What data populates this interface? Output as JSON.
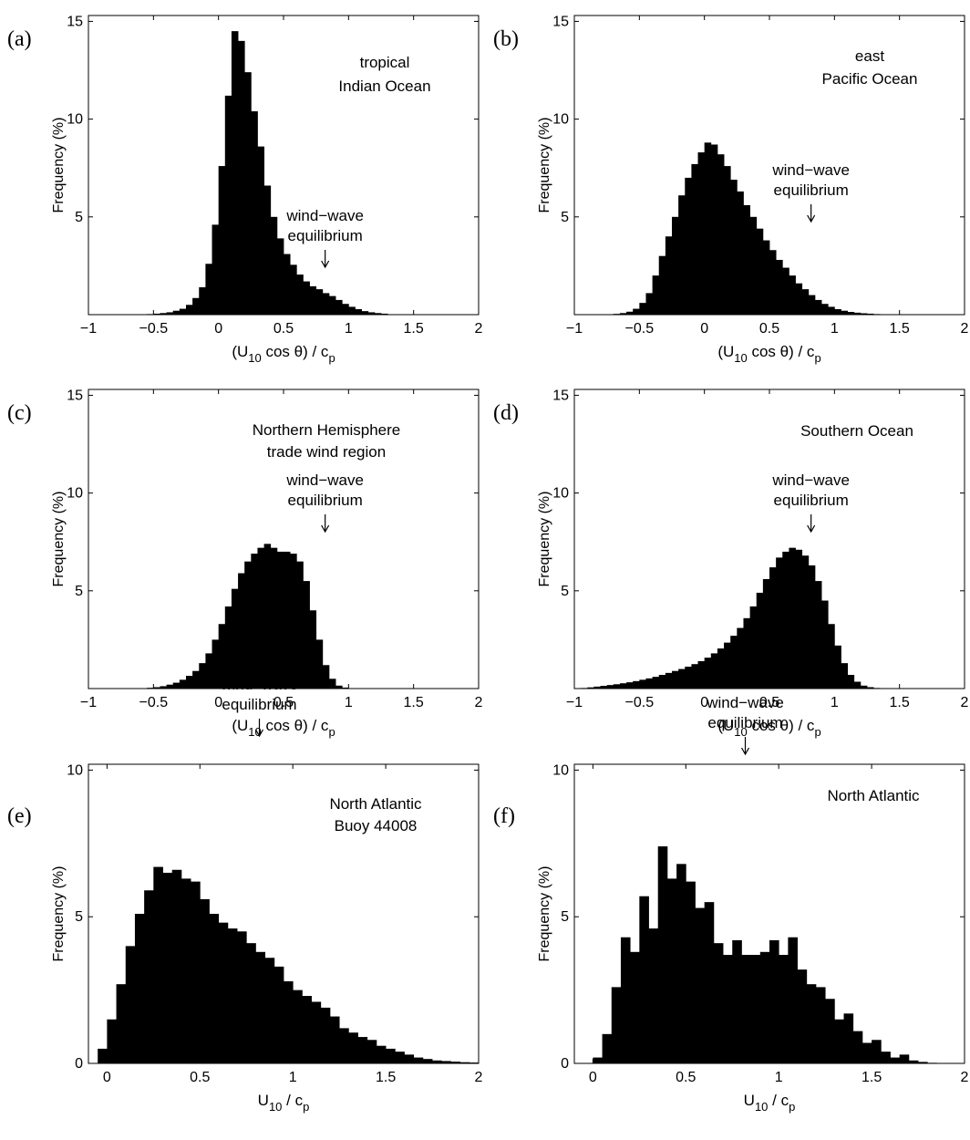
{
  "figure": {
    "y_label": "Frequency (%)"
  },
  "chart_data": [
    {
      "panel": "(a)",
      "type": "bar",
      "annotation": [
        "tropical",
        "Indian Ocean"
      ],
      "marker_label": [
        "wind−wave",
        "equilibrium"
      ],
      "marker_x": 0.82,
      "xlabel": "(U10 cos θ) / cp",
      "xlabel_parts": {
        "pre": "(U",
        "sub1": "10",
        "mid": " cos θ) / c",
        "sub2": "p"
      },
      "xlim": [
        -1,
        2
      ],
      "ylim": [
        0,
        15.3
      ],
      "xticks": [
        -1,
        -0.5,
        0,
        0.5,
        1,
        1.5,
        2
      ],
      "xtick_labels": [
        "−1",
        "−0.5",
        "0",
        "0.5",
        "1",
        "1.5",
        "2"
      ],
      "yticks": [
        5,
        10,
        15
      ],
      "ytick_labels": [
        "5",
        "10",
        "15"
      ],
      "bin_width": 0.05,
      "bin_start": -0.6,
      "values": [
        0.02,
        0.03,
        0.05,
        0.08,
        0.12,
        0.2,
        0.3,
        0.5,
        0.85,
        1.4,
        2.6,
        4.6,
        7.6,
        11.2,
        14.5,
        14.0,
        12.4,
        10.4,
        8.6,
        6.6,
        5.0,
        3.9,
        3.1,
        2.55,
        2.05,
        1.7,
        1.45,
        1.3,
        1.1,
        0.95,
        0.75,
        0.55,
        0.4,
        0.28,
        0.18,
        0.12,
        0.08,
        0.05
      ]
    },
    {
      "panel": "(b)",
      "type": "bar",
      "annotation": [
        "east",
        "Pacific Ocean"
      ],
      "marker_label": [
        "wind−wave",
        "equilibrium"
      ],
      "marker_x": 0.82,
      "xlabel": "(U10 cos θ) / cp",
      "xlabel_parts": {
        "pre": "(U",
        "sub1": "10",
        "mid": " cos θ) / c",
        "sub2": "p"
      },
      "xlim": [
        -1,
        2
      ],
      "ylim": [
        0,
        15.3
      ],
      "xticks": [
        -1,
        -0.5,
        0,
        0.5,
        1,
        1.5,
        2
      ],
      "xtick_labels": [
        "−1",
        "−0.5",
        "0",
        "0.5",
        "1",
        "1.5",
        "2"
      ],
      "yticks": [
        5,
        10,
        15
      ],
      "ytick_labels": [
        "5",
        "10",
        "15"
      ],
      "bin_width": 0.05,
      "bin_start": -0.75,
      "values": [
        0.02,
        0.04,
        0.08,
        0.15,
        0.3,
        0.6,
        1.1,
        2.0,
        3.0,
        4.0,
        5.0,
        6.1,
        7.0,
        7.7,
        8.3,
        8.8,
        8.7,
        8.2,
        7.6,
        6.9,
        6.3,
        5.6,
        5.0,
        4.4,
        3.8,
        3.3,
        2.8,
        2.4,
        2.0,
        1.6,
        1.3,
        1.0,
        0.75,
        0.55,
        0.4,
        0.28,
        0.2,
        0.14,
        0.1,
        0.07,
        0.05,
        0.03,
        0.02
      ]
    },
    {
      "panel": "(c)",
      "type": "bar",
      "annotation": [
        "Northern Hemisphere",
        "trade wind region"
      ],
      "marker_label": [
        "wind−wave",
        "equilibrium"
      ],
      "marker_x": 0.82,
      "xlabel": "(U10 cos θ) / cp",
      "xlabel_parts": {
        "pre": "(U",
        "sub1": "10",
        "mid": " cos θ) / c",
        "sub2": "p"
      },
      "xlim": [
        -1,
        2
      ],
      "ylim": [
        0,
        15.3
      ],
      "xticks": [
        -1,
        -0.5,
        0,
        0.5,
        1,
        1.5,
        2
      ],
      "xtick_labels": [
        "−1",
        "−0.5",
        "0",
        "0.5",
        "1",
        "1.5",
        "2"
      ],
      "yticks": [
        5,
        10,
        15
      ],
      "ytick_labels": [
        "5",
        "10",
        "15"
      ],
      "bin_width": 0.05,
      "bin_start": -0.6,
      "values": [
        0.02,
        0.04,
        0.07,
        0.12,
        0.2,
        0.3,
        0.45,
        0.65,
        0.9,
        1.3,
        1.8,
        2.5,
        3.3,
        4.2,
        5.1,
        5.9,
        6.5,
        6.9,
        7.2,
        7.4,
        7.2,
        7.0,
        7.0,
        6.9,
        6.5,
        5.5,
        4.0,
        2.5,
        1.2,
        0.5,
        0.15,
        0.05
      ]
    },
    {
      "panel": "(d)",
      "type": "bar",
      "annotation": [
        "Southern Ocean"
      ],
      "marker_label": [
        "wind−wave",
        "equilibrium"
      ],
      "marker_x": 0.82,
      "xlabel": "(U10 cos θ) / cp",
      "xlabel_parts": {
        "pre": "(U",
        "sub1": "10",
        "mid": " cos θ) / c",
        "sub2": "p"
      },
      "xlim": [
        -1,
        2
      ],
      "ylim": [
        0,
        15.3
      ],
      "xticks": [
        -1,
        -0.5,
        0,
        0.5,
        1,
        1.5,
        2
      ],
      "xtick_labels": [
        "−1",
        "−0.5",
        "0",
        "0.5",
        "1",
        "1.5",
        "2"
      ],
      "yticks": [
        5,
        10,
        15
      ],
      "ytick_labels": [
        "5",
        "10",
        "15"
      ],
      "bin_width": 0.05,
      "bin_start": -0.95,
      "values": [
        0.03,
        0.06,
        0.1,
        0.14,
        0.18,
        0.22,
        0.27,
        0.32,
        0.38,
        0.45,
        0.52,
        0.6,
        0.7,
        0.8,
        0.9,
        1.0,
        1.12,
        1.25,
        1.4,
        1.58,
        1.8,
        2.05,
        2.35,
        2.7,
        3.1,
        3.6,
        4.2,
        4.9,
        5.6,
        6.2,
        6.7,
        7.0,
        7.2,
        7.1,
        6.8,
        6.3,
        5.5,
        4.5,
        3.3,
        2.2,
        1.3,
        0.7,
        0.35,
        0.15,
        0.07,
        0.03
      ]
    },
    {
      "panel": "(e)",
      "type": "bar",
      "annotation": [
        "North Atlantic",
        "Buoy 44008"
      ],
      "marker_label": [
        "wind−wave",
        "equilibrium"
      ],
      "marker_x": 0.82,
      "xlabel": "U10 / cp",
      "xlabel_parts": {
        "pre": "U",
        "sub1": "10",
        "mid": " / c",
        "sub2": "p"
      },
      "xlim": [
        -0.1,
        2
      ],
      "ylim": [
        0,
        10.2
      ],
      "xticks": [
        0,
        0.5,
        1,
        1.5,
        2
      ],
      "xtick_labels": [
        "0",
        "0.5",
        "1",
        "1.5",
        "2"
      ],
      "yticks": [
        0,
        5,
        10
      ],
      "ytick_labels": [
        "0",
        "5",
        "10"
      ],
      "bin_width": 0.05,
      "bin_start": -0.05,
      "values": [
        0.5,
        1.5,
        2.7,
        4.0,
        5.1,
        5.9,
        6.7,
        6.5,
        6.6,
        6.3,
        6.2,
        5.6,
        5.1,
        4.8,
        4.6,
        4.5,
        4.1,
        3.8,
        3.6,
        3.3,
        2.8,
        2.5,
        2.3,
        2.1,
        1.9,
        1.6,
        1.2,
        1.05,
        0.9,
        0.8,
        0.6,
        0.5,
        0.4,
        0.3,
        0.2,
        0.15,
        0.1,
        0.08,
        0.06,
        0.04,
        0.03
      ]
    },
    {
      "panel": "(f)",
      "type": "bar",
      "annotation": [
        "North Atlantic"
      ],
      "marker_label": [
        "wind−wave",
        "equilibrium"
      ],
      "marker_x": 0.82,
      "xlabel": "U10 / cp",
      "xlabel_parts": {
        "pre": "U",
        "sub1": "10",
        "mid": " / c",
        "sub2": "p"
      },
      "xlim": [
        -0.1,
        2
      ],
      "ylim": [
        0,
        10.2
      ],
      "xticks": [
        0,
        0.5,
        1,
        1.5,
        2
      ],
      "xtick_labels": [
        "0",
        "0.5",
        "1",
        "1.5",
        "2"
      ],
      "yticks": [
        0,
        5,
        10
      ],
      "ytick_labels": [
        "0",
        "5",
        "10"
      ],
      "bin_width": 0.05,
      "bin_start": 0.0,
      "values": [
        0.2,
        1.0,
        2.6,
        4.3,
        3.8,
        5.7,
        4.6,
        7.4,
        6.3,
        6.8,
        6.2,
        5.3,
        5.5,
        4.1,
        3.7,
        4.2,
        3.7,
        3.7,
        3.8,
        4.2,
        3.7,
        4.3,
        3.2,
        2.7,
        2.6,
        2.2,
        1.5,
        1.7,
        1.1,
        0.7,
        0.8,
        0.4,
        0.2,
        0.3,
        0.1,
        0.05,
        0.02
      ]
    }
  ]
}
